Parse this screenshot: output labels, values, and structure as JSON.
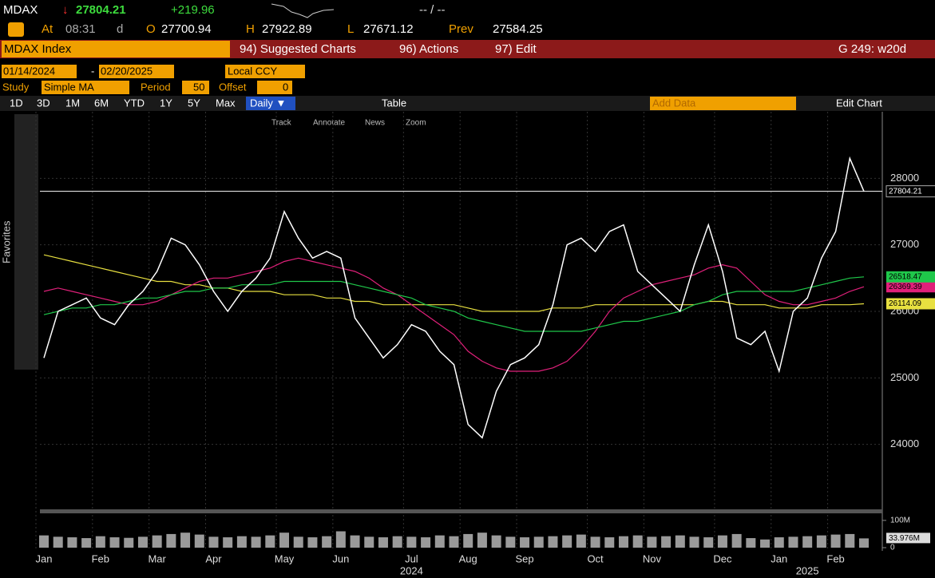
{
  "quote": {
    "ticker": "MDAX",
    "last": "27804.21",
    "change": "+219.96",
    "bid_ask": "-- / --",
    "at_label": "At",
    "time": "08:31",
    "flag": "d",
    "open_label": "O",
    "open": "27700.94",
    "high_label": "H",
    "high": "27922.89",
    "low_label": "L",
    "low": "27671.12",
    "prev_label": "Prev",
    "prev": "27584.25"
  },
  "menu": {
    "security": "MDAX Index",
    "items": [
      "94) Suggested Charts",
      "96) Actions",
      "97) Edit"
    ],
    "page": "G 249: w20d"
  },
  "settings": {
    "start": "01/14/2024",
    "sep": "-",
    "end": "02/20/2025",
    "currency": "Local CCY",
    "study_label": "Study",
    "study": "Simple MA",
    "period_label": "Period",
    "period": "50",
    "offset_label": "Offset",
    "offset": "0"
  },
  "ranges": [
    "1D",
    "3D",
    "1M",
    "6M",
    "YTD",
    "1Y",
    "5Y",
    "Max"
  ],
  "frequency": "Daily ▼",
  "table": "Table",
  "add_data": "Add Data",
  "edit_chart": "Edit Chart",
  "chart_tools": [
    "Track",
    "Annotate",
    "News",
    "Zoom"
  ],
  "sidebar": "Favorites",
  "chart_data": {
    "type": "line",
    "categories": [
      "Jan",
      null,
      null,
      null,
      "Feb",
      null,
      null,
      null,
      "Mar",
      null,
      null,
      null,
      "Apr",
      null,
      null,
      null,
      null,
      "May",
      null,
      null,
      null,
      "Jun",
      null,
      null,
      null,
      null,
      "Jul",
      null,
      null,
      null,
      "Aug",
      null,
      null,
      null,
      "Sep",
      null,
      null,
      null,
      null,
      "Oct",
      null,
      null,
      null,
      "Nov",
      null,
      null,
      null,
      null,
      "Dec",
      null,
      null,
      null,
      "Jan",
      null,
      null,
      null,
      "Feb",
      null,
      null
    ],
    "year_labels": [
      {
        "index": 26,
        "label": "2024"
      },
      {
        "index": 54,
        "label": "2025"
      }
    ],
    "series": [
      {
        "color": "#ffffff",
        "values": [
          25300,
          26000,
          26100,
          26200,
          25900,
          25800,
          26100,
          26300,
          26600,
          27100,
          27000,
          26700,
          26300,
          26000,
          26300,
          26500,
          26800,
          27500,
          27100,
          26800,
          26900,
          26800,
          25900,
          25600,
          25300,
          25500,
          25800,
          25700,
          25400,
          25200,
          24300,
          24100,
          24800,
          25200,
          25300,
          25500,
          26100,
          27000,
          27100,
          26900,
          27200,
          27300,
          26600,
          26400,
          26200,
          26000,
          26700,
          27300,
          26600,
          25600,
          25500,
          25700,
          25100,
          26000,
          26200,
          26800,
          27200,
          28300,
          27804.21
        ]
      },
      {
        "color": "#1fc74a",
        "values": [
          25950,
          26000,
          26050,
          26050,
          26100,
          26100,
          26150,
          26200,
          26200,
          26250,
          26300,
          26300,
          26350,
          26350,
          26400,
          26400,
          26400,
          26450,
          26450,
          26450,
          26450,
          26450,
          26400,
          26350,
          26300,
          26250,
          26200,
          26100,
          26050,
          26000,
          25900,
          25850,
          25800,
          25750,
          25700,
          25700,
          25700,
          25700,
          25700,
          25750,
          25800,
          25850,
          25850,
          25900,
          25950,
          26000,
          26100,
          26150,
          26250,
          26300,
          26300,
          26300,
          26300,
          26300,
          26350,
          26400,
          26450,
          26500,
          26518.47
        ]
      },
      {
        "color": "#e0207a",
        "values": [
          26300,
          26350,
          26300,
          26250,
          26200,
          26150,
          26100,
          26100,
          26150,
          26250,
          26350,
          26450,
          26500,
          26500,
          26550,
          26600,
          26650,
          26750,
          26800,
          26750,
          26700,
          26650,
          26600,
          26500,
          26350,
          26250,
          26100,
          25950,
          25800,
          25650,
          25400,
          25250,
          25150,
          25100,
          25100,
          25100,
          25150,
          25250,
          25450,
          25700,
          26000,
          26200,
          26300,
          26400,
          26450,
          26500,
          26550,
          26650,
          26700,
          26650,
          26450,
          26250,
          26150,
          26100,
          26100,
          26150,
          26200,
          26300,
          26369.39
        ]
      },
      {
        "color": "#e8e040",
        "values": [
          26850,
          26800,
          26750,
          26700,
          26650,
          26600,
          26550,
          26500,
          26450,
          26450,
          26400,
          26400,
          26350,
          26350,
          26300,
          26300,
          26300,
          26250,
          26250,
          26250,
          26200,
          26200,
          26150,
          26150,
          26100,
          26100,
          26100,
          26100,
          26100,
          26100,
          26050,
          26000,
          26000,
          26000,
          26000,
          26000,
          26050,
          26050,
          26050,
          26100,
          26100,
          26100,
          26100,
          26100,
          26100,
          26100,
          26100,
          26150,
          26150,
          26100,
          26100,
          26100,
          26050,
          26050,
          26050,
          26100,
          26100,
          26100,
          26114.09
        ]
      }
    ],
    "ylim": [
      23000,
      29000
    ],
    "yticks": [
      24000,
      25000,
      26000,
      27000,
      28000
    ],
    "volume": {
      "color": "#9a9a9a",
      "values": [
        45,
        40,
        38,
        35,
        42,
        38,
        36,
        40,
        45,
        50,
        55,
        48,
        40,
        38,
        42,
        40,
        45,
        55,
        40,
        38,
        42,
        60,
        45,
        40,
        38,
        42,
        40,
        38,
        45,
        42,
        50,
        55,
        45,
        40,
        38,
        40,
        42,
        45,
        48,
        40,
        38,
        42,
        45,
        40,
        42,
        45,
        40,
        38,
        45,
        50,
        35,
        30,
        38,
        40,
        42,
        45,
        48,
        50,
        33.976
      ],
      "last_value_label": "33.976M",
      "ylim": [
        0,
        120
      ],
      "yticks": [
        {
          "value": 100,
          "label": "100M"
        },
        0
      ]
    }
  }
}
